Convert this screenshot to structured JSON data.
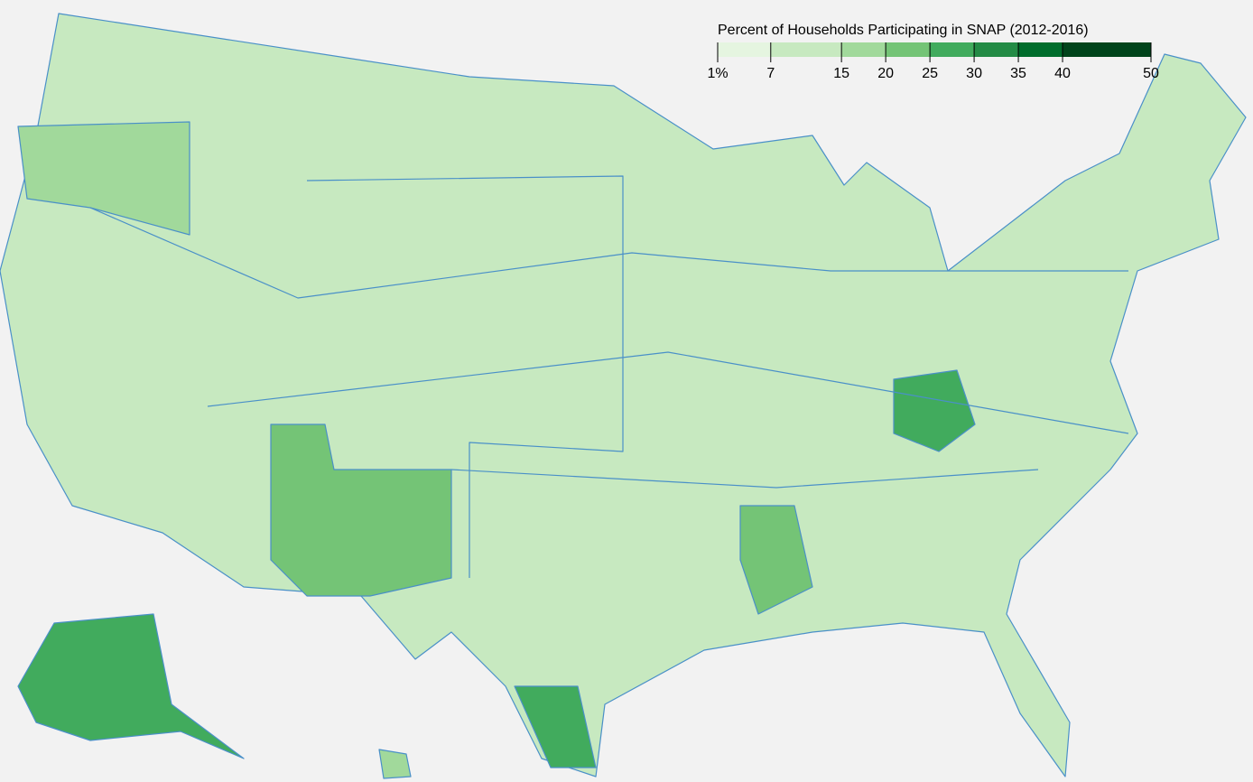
{
  "map": {
    "title": "Percent of Households Participating in SNAP (2012-2016)",
    "xlim": [
      1,
      50
    ],
    "thresholds": [
      {
        "value": 1,
        "label": "1%"
      },
      7,
      15,
      20,
      25,
      30,
      35,
      40,
      50
    ],
    "colors": [
      "#e5f5e0",
      "#c7e9c0",
      "#a1d99b",
      "#74c476",
      "#41ab5d",
      "#238b45",
      "#006d2c",
      "#00441b"
    ]
  }
}
